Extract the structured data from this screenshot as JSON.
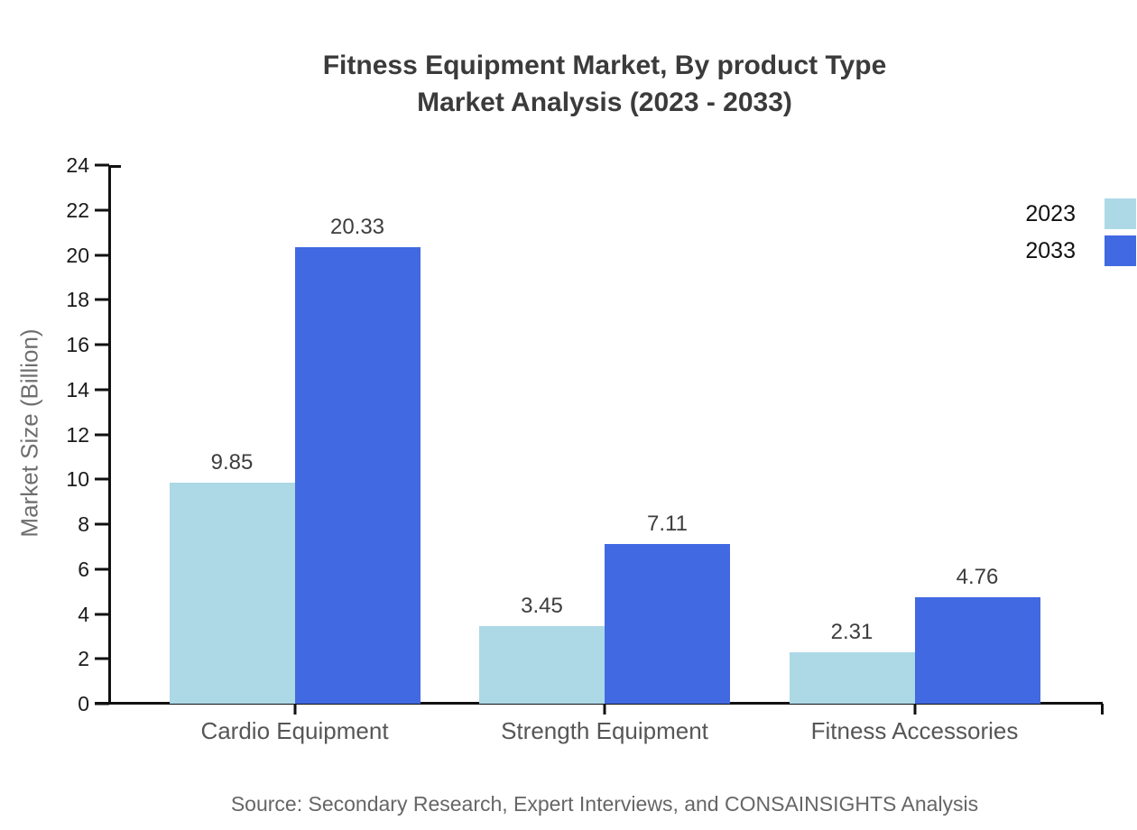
{
  "title": {
    "line1": "Fitness Equipment Market, By product Type",
    "line2": "Market Analysis (2023 - 2033)"
  },
  "chart_data": {
    "type": "bar",
    "categories": [
      "Cardio Equipment",
      "Strength Equipment",
      "Fitness Accessories"
    ],
    "series": [
      {
        "name": "2023",
        "color": "#ADD8E6",
        "values": [
          9.85,
          3.45,
          2.31
        ]
      },
      {
        "name": "2033",
        "color": "#4169E1",
        "values": [
          20.33,
          7.11,
          4.76
        ]
      }
    ],
    "value_labels": [
      "9.85",
      "3.45",
      "2.31",
      "20.33",
      "7.11",
      "4.76"
    ],
    "xlabel": "",
    "ylabel": "Market Size (Billion)",
    "ylim": [
      0,
      24
    ],
    "ytick_step": 2,
    "grid": false,
    "legend_position": "top-right",
    "value_labels_shown": true
  },
  "source": "Source: Secondary Research, Expert Interviews, and CONSAINSIGHTS Analysis",
  "colors": {
    "series_2023": "#ADD8E6",
    "series_2033": "#4169E1",
    "axis": "#111111",
    "title_text": "#3b3b3b",
    "tick_label": "#1a1a1a",
    "category_label": "#565656",
    "value_label": "#3d3d3d",
    "axis_title": "#6e6e6e",
    "source_text": "#666666",
    "background": "#ffffff"
  }
}
